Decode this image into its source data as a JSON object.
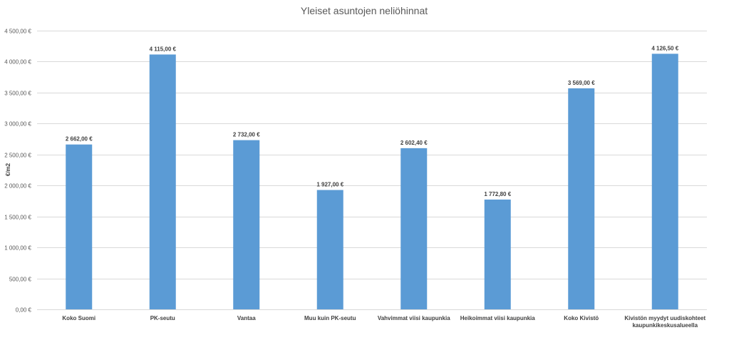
{
  "chart_data": {
    "type": "bar",
    "title": "Yleiset asuntojen neliöhinnat",
    "xlabel": "",
    "ylabel": "€/m2",
    "ylim": [
      0,
      4500
    ],
    "grid": true,
    "legend": "none",
    "bar_color": "#5B9BD5",
    "grid_color": "#D9D9D9",
    "y_ticks": [
      0,
      500,
      1000,
      1500,
      2000,
      2500,
      3000,
      3500,
      4000,
      4500
    ],
    "y_tick_labels": [
      "0,00 €",
      "500,00 €",
      "1 000,00 €",
      "1 500,00 €",
      "2 000,00 €",
      "2 500,00 €",
      "3 000,00 €",
      "3 500,00 €",
      "4 000,00 €",
      "4 500,00 €"
    ],
    "categories": [
      "Koko Suomi",
      "PK-seutu",
      "Vantaa",
      "Muu kuin PK-seutu",
      "Vahvimmat viisi kaupunkia",
      "Heikoimmat viisi kaupunkia",
      "Koko Kivistö",
      "Kivistön myydyt uudiskohteet kaupunkikeskusalueella"
    ],
    "category_label_lines": [
      [
        "Koko Suomi"
      ],
      [
        "PK-seutu"
      ],
      [
        "Vantaa"
      ],
      [
        "Muu kuin PK-seutu"
      ],
      [
        "Vahvimmat viisi kaupunkia"
      ],
      [
        "Heikoimmat viisi kaupunkia"
      ],
      [
        "Koko Kivistö"
      ],
      [
        "Kivistön myydyt uudiskohteet",
        "kaupunkikeskusalueella"
      ]
    ],
    "values": [
      2662.0,
      4115.0,
      2732.0,
      1927.0,
      2602.4,
      1772.8,
      3569.0,
      4126.5
    ],
    "data_labels": [
      "2 662,00 €",
      "4 115,00 €",
      "2 732,00 €",
      "1 927,00 €",
      "2 602,40 €",
      "1 772,80 €",
      "3 569,00 €",
      "4 126,50 €"
    ]
  }
}
